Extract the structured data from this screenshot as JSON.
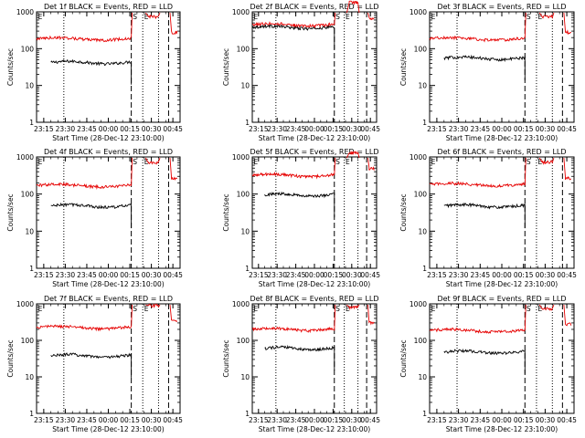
{
  "chart_data": [
    {
      "type": "line",
      "title": "Det 1f BLACK = Events, RED = LLD",
      "xlabel": "Start Time (28-Dec-12 23:10:00)",
      "ylabel": "Counts/sec",
      "xticks": [
        "23:15",
        "23:30",
        "23:45",
        "00:00",
        "00:15",
        "00:30",
        "00:45"
      ],
      "yticks": [
        "1",
        "10",
        "100",
        "1000"
      ],
      "ylim": [
        1,
        1000
      ],
      "ylog": true,
      "markers": [
        "E",
        "S",
        "E"
      ],
      "series": [
        {
          "color": "#000000",
          "level": 42,
          "x_start": "23:20",
          "x_end": "00:16"
        },
        {
          "color": "#e60000",
          "level": 185,
          "x_start": "23:10",
          "x_end": "00:16"
        }
      ]
    },
    {
      "type": "line",
      "title": "Det 2f BLACK = Events, RED = LLD",
      "xlabel": "Start Time (28-Dec-12 23:10:00)",
      "ylabel": "Counts/sec",
      "xticks": [
        "23:15",
        "23:30",
        "23:45",
        "00:00",
        "00:15",
        "00:30",
        "00:45"
      ],
      "yticks": [
        "1",
        "10",
        "100",
        "1000"
      ],
      "ylim": [
        1,
        1000
      ],
      "ylog": true,
      "markers": [
        "E",
        "S",
        "E"
      ],
      "series": [
        {
          "color": "#000000",
          "level": 380,
          "x_start": "23:10",
          "x_end": "00:16"
        },
        {
          "color": "#e60000",
          "level": 450,
          "x_start": "23:10",
          "x_end": "00:16"
        }
      ]
    },
    {
      "type": "line",
      "title": "Det 3f BLACK = Events, RED = LLD",
      "xlabel": "Start Time (28-Dec-12 23:10:00)",
      "ylabel": "Counts/sec",
      "xticks": [
        "23:15",
        "23:30",
        "23:45",
        "00:00",
        "00:15",
        "00:30",
        "00:45"
      ],
      "yticks": [
        "1",
        "10",
        "100",
        "1000"
      ],
      "ylim": [
        1,
        1000
      ],
      "ylog": true,
      "markers": [
        "E",
        "S",
        "E"
      ],
      "series": [
        {
          "color": "#000000",
          "level": 55,
          "x_start": "23:20",
          "x_end": "00:16"
        },
        {
          "color": "#e60000",
          "level": 185,
          "x_start": "23:10",
          "x_end": "00:16"
        }
      ]
    },
    {
      "type": "line",
      "title": "Det 4f BLACK = Events, RED = LLD",
      "xlabel": "Start Time (28-Dec-12 23:10:00)",
      "ylabel": "Counts/sec",
      "xticks": [
        "23:15",
        "23:30",
        "23:45",
        "00:00",
        "00:15",
        "00:30",
        "00:45"
      ],
      "yticks": [
        "1",
        "10",
        "100",
        "1000"
      ],
      "ylim": [
        1,
        1000
      ],
      "ylog": true,
      "markers": [
        "E",
        "S",
        "E"
      ],
      "series": [
        {
          "color": "#000000",
          "level": 48,
          "x_start": "23:20",
          "x_end": "00:16"
        },
        {
          "color": "#e60000",
          "level": 170,
          "x_start": "23:10",
          "x_end": "00:16"
        }
      ]
    },
    {
      "type": "line",
      "title": "Det 5f BLACK = Events, RED = LLD",
      "xlabel": "Start Time (28-Dec-12 23:10:00)",
      "ylabel": "Counts/sec",
      "xticks": [
        "23:15",
        "23:30",
        "23:45",
        "00:00",
        "00:15",
        "00:30",
        "00:45"
      ],
      "yticks": [
        "1",
        "10",
        "100",
        "1000"
      ],
      "ylim": [
        1,
        1000
      ],
      "ylog": true,
      "markers": [
        "E",
        "S",
        "E"
      ],
      "series": [
        {
          "color": "#000000",
          "level": 95,
          "x_start": "23:20",
          "x_end": "00:16"
        },
        {
          "color": "#e60000",
          "level": 320,
          "x_start": "23:10",
          "x_end": "00:16"
        }
      ]
    },
    {
      "type": "line",
      "title": "Det 6f BLACK = Events, RED = LLD",
      "xlabel": "Start Time (28-Dec-12 23:10:00)",
      "ylabel": "Counts/sec",
      "xticks": [
        "23:15",
        "23:30",
        "23:45",
        "00:00",
        "00:15",
        "00:30",
        "00:45"
      ],
      "yticks": [
        "1",
        "10",
        "100",
        "1000"
      ],
      "ylim": [
        1,
        1000
      ],
      "ylog": true,
      "markers": [
        "E",
        "S",
        "E"
      ],
      "series": [
        {
          "color": "#000000",
          "level": 48,
          "x_start": "23:20",
          "x_end": "00:16"
        },
        {
          "color": "#e60000",
          "level": 180,
          "x_start": "23:10",
          "x_end": "00:16"
        }
      ]
    },
    {
      "type": "line",
      "title": "Det 7f BLACK = Events, RED = LLD",
      "xlabel": "Start Time (28-Dec-12 23:10:00)",
      "ylabel": "Counts/sec",
      "xticks": [
        "23:15",
        "23:30",
        "23:45",
        "00:00",
        "00:15",
        "00:30",
        "00:45"
      ],
      "yticks": [
        "1",
        "10",
        "100",
        "1000"
      ],
      "ylim": [
        1,
        1000
      ],
      "ylog": true,
      "markers": [
        "E",
        "S",
        "E"
      ],
      "series": [
        {
          "color": "#000000",
          "level": 38,
          "x_start": "23:20",
          "x_end": "00:16"
        },
        {
          "color": "#e60000",
          "level": 225,
          "x_start": "23:10",
          "x_end": "00:16"
        }
      ]
    },
    {
      "type": "line",
      "title": "Det 8f BLACK = Events, RED = LLD",
      "xlabel": "Start Time (28-Dec-12 23:10:00)",
      "ylabel": "Counts/sec",
      "xticks": [
        "23:15",
        "23:30",
        "23:45",
        "00:00",
        "00:15",
        "00:30",
        "00:45"
      ],
      "yticks": [
        "1",
        "10",
        "100",
        "1000"
      ],
      "ylim": [
        1,
        1000
      ],
      "ylog": true,
      "markers": [
        "E",
        "S",
        "E"
      ],
      "series": [
        {
          "color": "#000000",
          "level": 60,
          "x_start": "23:20",
          "x_end": "00:16"
        },
        {
          "color": "#e60000",
          "level": 200,
          "x_start": "23:10",
          "x_end": "00:16"
        }
      ]
    },
    {
      "type": "line",
      "title": "Det 9f BLACK = Events, RED = LLD",
      "xlabel": "Start Time (28-Dec-12 23:10:00)",
      "ylabel": "Counts/sec",
      "xticks": [
        "23:15",
        "23:30",
        "23:45",
        "00:00",
        "00:15",
        "00:30",
        "00:45"
      ],
      "yticks": [
        "1",
        "10",
        "100",
        "1000"
      ],
      "ylim": [
        1,
        1000
      ],
      "ylog": true,
      "markers": [
        "E",
        "S",
        "E"
      ],
      "series": [
        {
          "color": "#000000",
          "level": 48,
          "x_start": "23:20",
          "x_end": "00:16"
        },
        {
          "color": "#e60000",
          "level": 185,
          "x_start": "23:10",
          "x_end": "00:16"
        }
      ]
    }
  ]
}
